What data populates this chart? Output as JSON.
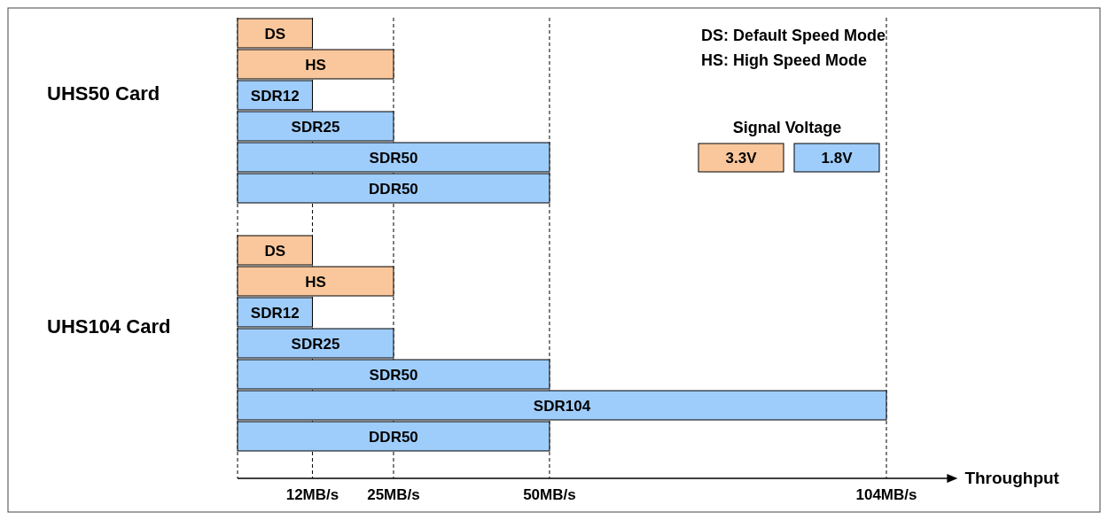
{
  "chart_data": {
    "type": "bar",
    "orientation": "horizontal",
    "xlabel": "Throughput",
    "categories": [
      "DS",
      "HS",
      "SDR12",
      "SDR25",
      "SDR50",
      "DDR50",
      null,
      "DS",
      "HS",
      "SDR12",
      "SDR25",
      "SDR50",
      "SDR104",
      "DDR50"
    ],
    "series": [
      {
        "name": "3.3V",
        "color": "#fac79c",
        "values": [
          12,
          25,
          null,
          null,
          null,
          null,
          null,
          12,
          25,
          null,
          null,
          null,
          null,
          null
        ]
      },
      {
        "name": "1.8V",
        "color": "#9fcdfb",
        "values": [
          null,
          null,
          12,
          25,
          50,
          50,
          null,
          null,
          null,
          12,
          25,
          50,
          104,
          50
        ]
      }
    ],
    "xlim": [
      0,
      114
    ],
    "xticks": [
      {
        "value": 0,
        "label": null
      },
      {
        "value": 12,
        "label": "12MB/s"
      },
      {
        "value": 25,
        "label": "25MB/s"
      },
      {
        "value": 50,
        "label": "50MB/s"
      },
      {
        "value": 104,
        "label": "104MB/s"
      }
    ],
    "grid": "x",
    "legend": "top right",
    "legend_title": "Signal Voltage",
    "annotations": [
      "DS: Default Speed Mode",
      "HS: High Speed Mode",
      "UHS50 Card",
      "UHS104 Card"
    ]
  }
}
